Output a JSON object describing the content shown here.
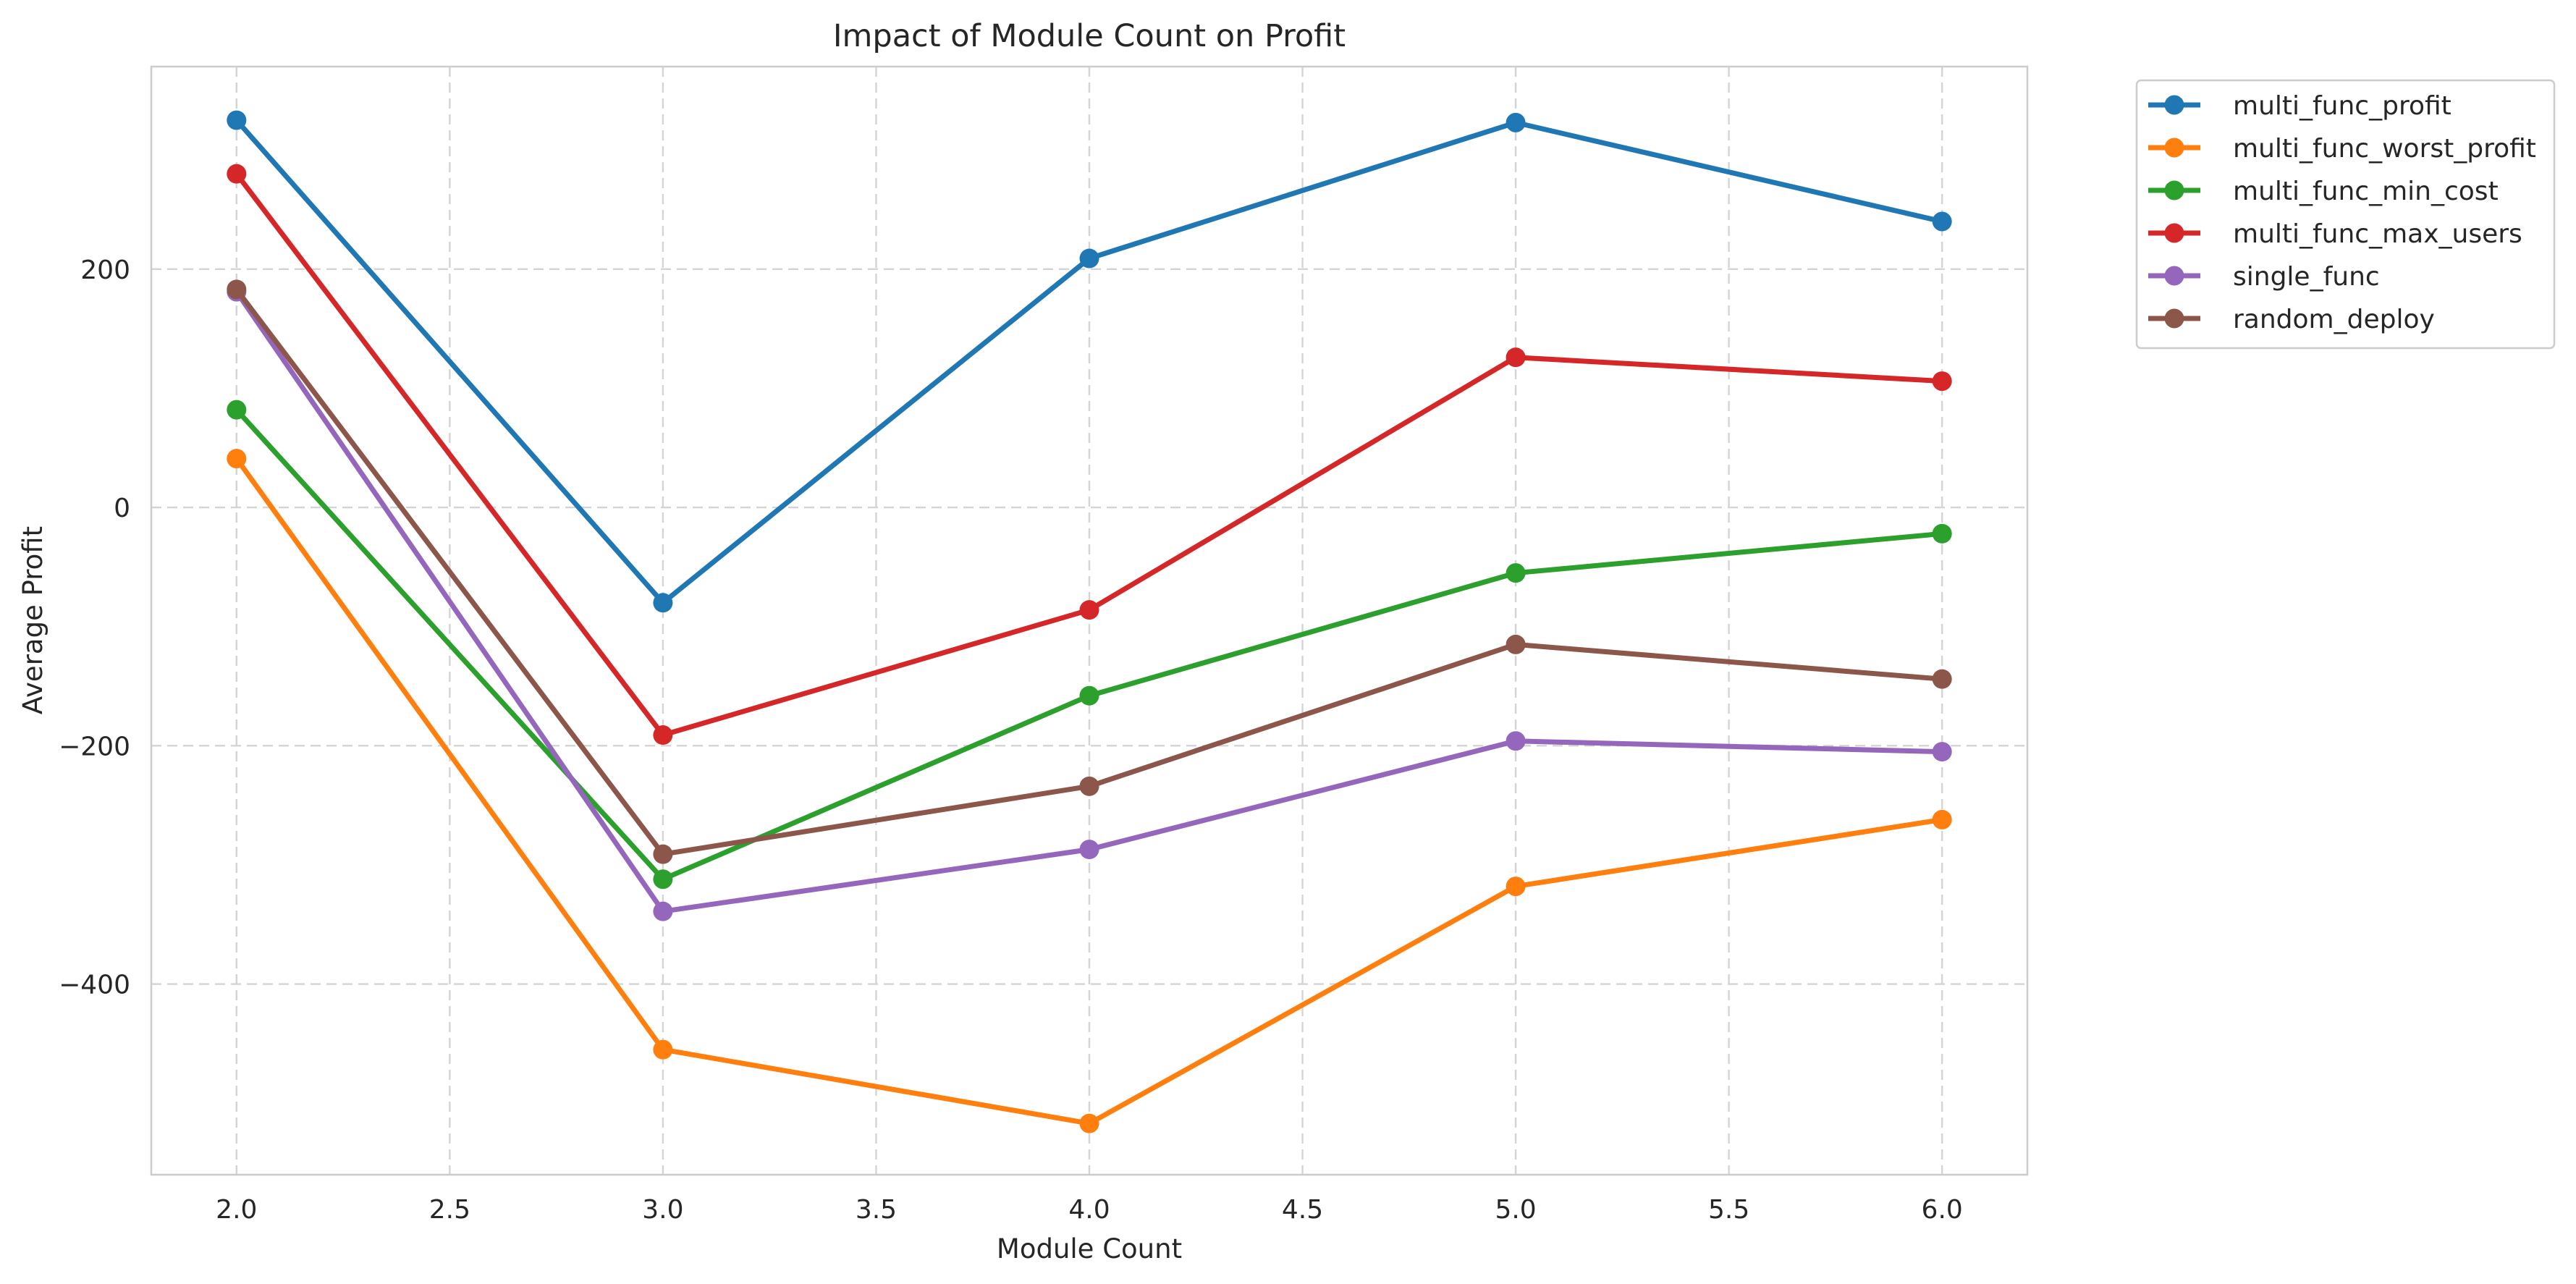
{
  "chart_data": {
    "type": "line",
    "title": "Impact of Module Count on Profit",
    "xlabel": "Module Count",
    "ylabel": "Average Profit",
    "x": [
      2.0,
      3.0,
      4.0,
      5.0,
      6.0
    ],
    "xlim": [
      1.8,
      6.2
    ],
    "ylim": [
      -560,
      370
    ],
    "x_ticks": [
      "2.0",
      "2.5",
      "3.0",
      "3.5",
      "4.0",
      "4.5",
      "5.0",
      "5.5",
      "6.0"
    ],
    "x_tick_values": [
      2.0,
      2.5,
      3.0,
      3.5,
      4.0,
      4.5,
      5.0,
      5.5,
      6.0
    ],
    "y_ticks": [
      "−400",
      "−200",
      "0",
      "200"
    ],
    "y_tick_values": [
      -400,
      -200,
      0,
      200
    ],
    "grid": true,
    "legend_position": "outside top-right",
    "series": [
      {
        "name": "multi_func_profit",
        "color": "#1f77b4",
        "values": [
          325,
          -80,
          209,
          323,
          240
        ]
      },
      {
        "name": "multi_func_worst_profit",
        "color": "#ff7f0e",
        "values": [
          41,
          -455,
          -517,
          -318,
          -262
        ]
      },
      {
        "name": "multi_func_min_cost",
        "color": "#2ca02c",
        "values": [
          82,
          -312,
          -158,
          -55,
          -22
        ]
      },
      {
        "name": "multi_func_max_users",
        "color": "#d62728",
        "values": [
          280,
          -191,
          -86,
          126,
          106
        ]
      },
      {
        "name": "single_func",
        "color": "#9467bd",
        "values": [
          181,
          -339,
          -287,
          -196,
          -205
        ]
      },
      {
        "name": "random_deploy",
        "color": "#8c564b",
        "values": [
          183,
          -291,
          -234,
          -115,
          -144
        ]
      }
    ]
  }
}
